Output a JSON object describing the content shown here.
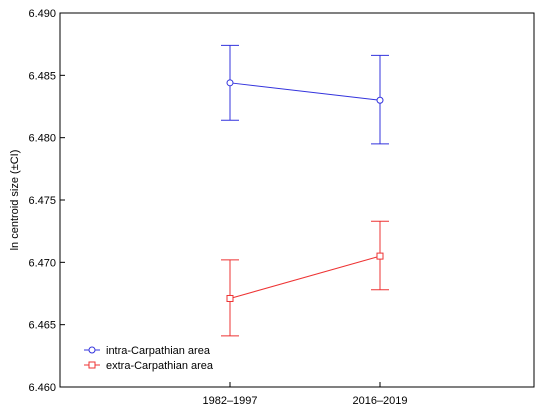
{
  "chart_data": {
    "type": "line",
    "xlabel": "",
    "ylabel": "ln centroid size (±CI)",
    "categories": [
      "1982–1997",
      "2016–2019"
    ],
    "ylim": [
      6.46,
      6.49
    ],
    "yticks": [
      "6.460",
      "6.465",
      "6.470",
      "6.475",
      "6.480",
      "6.485",
      "6.490"
    ],
    "grid": false,
    "legend_position": "bottom-left",
    "series": [
      {
        "name": "intra-Carpathian area",
        "color": "#3333dd",
        "marker": "circle",
        "values": [
          6.4844,
          6.483
        ],
        "ci_low": [
          6.4814,
          6.4795
        ],
        "ci_high": [
          6.4874,
          6.4866
        ]
      },
      {
        "name": "extra-Carpathian area",
        "color": "#ee3333",
        "marker": "square",
        "values": [
          6.4671,
          6.4705
        ],
        "ci_low": [
          6.4641,
          6.4678
        ],
        "ci_high": [
          6.4702,
          6.4733
        ]
      }
    ]
  }
}
